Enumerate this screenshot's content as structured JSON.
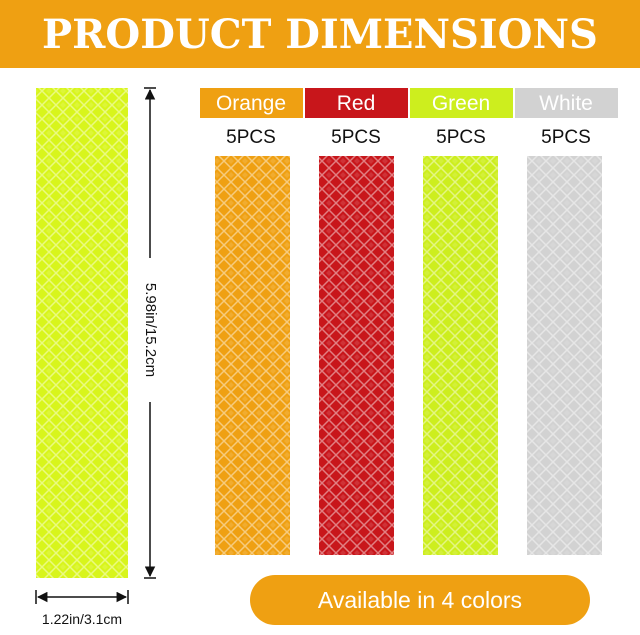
{
  "header": {
    "title": "PRODUCT DIMENSIONS"
  },
  "dimensions": {
    "length": "5.98in/15.2cm",
    "width": "1.22in/3.1cm",
    "sample_color": "#d8f51c"
  },
  "variants": [
    {
      "name": "Orange",
      "count": "5PCS",
      "color": "#efa012"
    },
    {
      "name": "Red",
      "count": "5PCS",
      "color": "#c8161b"
    },
    {
      "name": "Green",
      "count": "5PCS",
      "color": "#cdee1e"
    },
    {
      "name": "White",
      "count": "5PCS",
      "color": "#d2d2d2"
    }
  ],
  "footer": {
    "badge": "Available in 4 colors"
  }
}
